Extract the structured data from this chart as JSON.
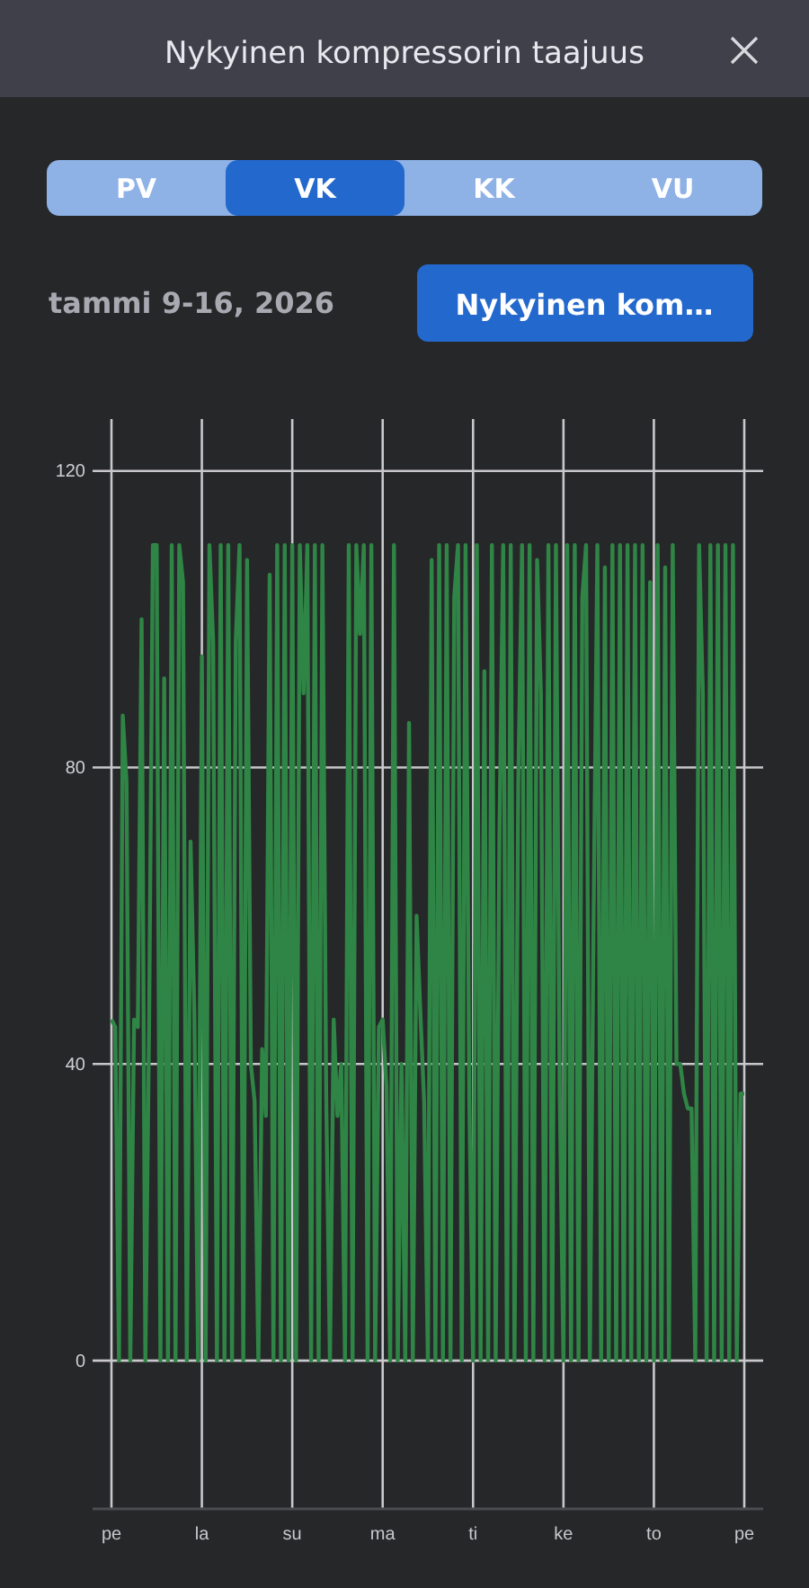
{
  "chart_data": {
    "type": "line",
    "title": "Nykyinen kompressorin taajuus",
    "subtitle": "tammi 9-16, 2026",
    "annotations": [
      "PV",
      "VK",
      "KK",
      "VU",
      "Nykyinen kom…"
    ],
    "categories": [
      "pe",
      null,
      null,
      null,
      null,
      null,
      null,
      null,
      null,
      null,
      null,
      null,
      null,
      null,
      null,
      null,
      null,
      null,
      null,
      null,
      null,
      null,
      null,
      null,
      "la",
      null,
      null,
      null,
      null,
      null,
      null,
      null,
      null,
      null,
      null,
      null,
      null,
      null,
      null,
      null,
      null,
      null,
      null,
      null,
      null,
      null,
      null,
      null,
      "su",
      null,
      null,
      null,
      null,
      null,
      null,
      null,
      null,
      null,
      null,
      null,
      null,
      null,
      null,
      null,
      null,
      null,
      null,
      null,
      null,
      null,
      null,
      null,
      "ma",
      null,
      null,
      null,
      null,
      null,
      null,
      null,
      null,
      null,
      null,
      null,
      null,
      null,
      null,
      null,
      null,
      null,
      null,
      null,
      null,
      null,
      null,
      null,
      "ti",
      null,
      null,
      null,
      null,
      null,
      null,
      null,
      null,
      null,
      null,
      null,
      null,
      null,
      null,
      null,
      null,
      null,
      null,
      null,
      null,
      null,
      null,
      null,
      "ke",
      null,
      null,
      null,
      null,
      null,
      null,
      null,
      null,
      null,
      null,
      null,
      null,
      null,
      null,
      null,
      null,
      null,
      null,
      null,
      null,
      null,
      null,
      null,
      "to",
      null,
      null,
      null,
      null,
      null,
      null,
      null,
      null,
      null,
      null,
      null,
      null,
      null,
      null,
      null,
      null,
      null,
      null,
      null,
      null,
      null,
      null,
      null,
      "pe"
    ],
    "series": [
      {
        "color": "#2f8545",
        "values": [
          46,
          45,
          0,
          87,
          78,
          0,
          46,
          45,
          100,
          0,
          46,
          110,
          110,
          0,
          92,
          0,
          110,
          0,
          110,
          105,
          0,
          70,
          47,
          0,
          95,
          0,
          110,
          97,
          0,
          110,
          0,
          110,
          0,
          97,
          110,
          0,
          108,
          40,
          35,
          0,
          42,
          33,
          106,
          0,
          110,
          0,
          110,
          0,
          110,
          0,
          110,
          90,
          110,
          0,
          110,
          0,
          110,
          36,
          0,
          46,
          33,
          40,
          0,
          110,
          0,
          110,
          98,
          110,
          0,
          110,
          0,
          45,
          46,
          37,
          0,
          110,
          0,
          40,
          0,
          86,
          0,
          60,
          47,
          35,
          0,
          108,
          0,
          110,
          0,
          110,
          0,
          103,
          110,
          0,
          110,
          35,
          0,
          110,
          0,
          93,
          0,
          110,
          0,
          71,
          110,
          0,
          110,
          0,
          78,
          110,
          0,
          110,
          0,
          108,
          90,
          0,
          110,
          0,
          110,
          36,
          0,
          110,
          0,
          110,
          0,
          103,
          110,
          0,
          60,
          110,
          0,
          107,
          0,
          110,
          0,
          110,
          0,
          110,
          0,
          110,
          0,
          110,
          0,
          105,
          0,
          110,
          0,
          107,
          0,
          110,
          40,
          40,
          36,
          34,
          34,
          0,
          110,
          90,
          0,
          110,
          0,
          110,
          0,
          110,
          0,
          110,
          0,
          36,
          36
        ]
      }
    ],
    "ylim": [
      -20,
      127
    ],
    "yticks": [
      0,
      40,
      80,
      120
    ],
    "grid": true,
    "marker": "none",
    "line_style": "solid"
  }
}
